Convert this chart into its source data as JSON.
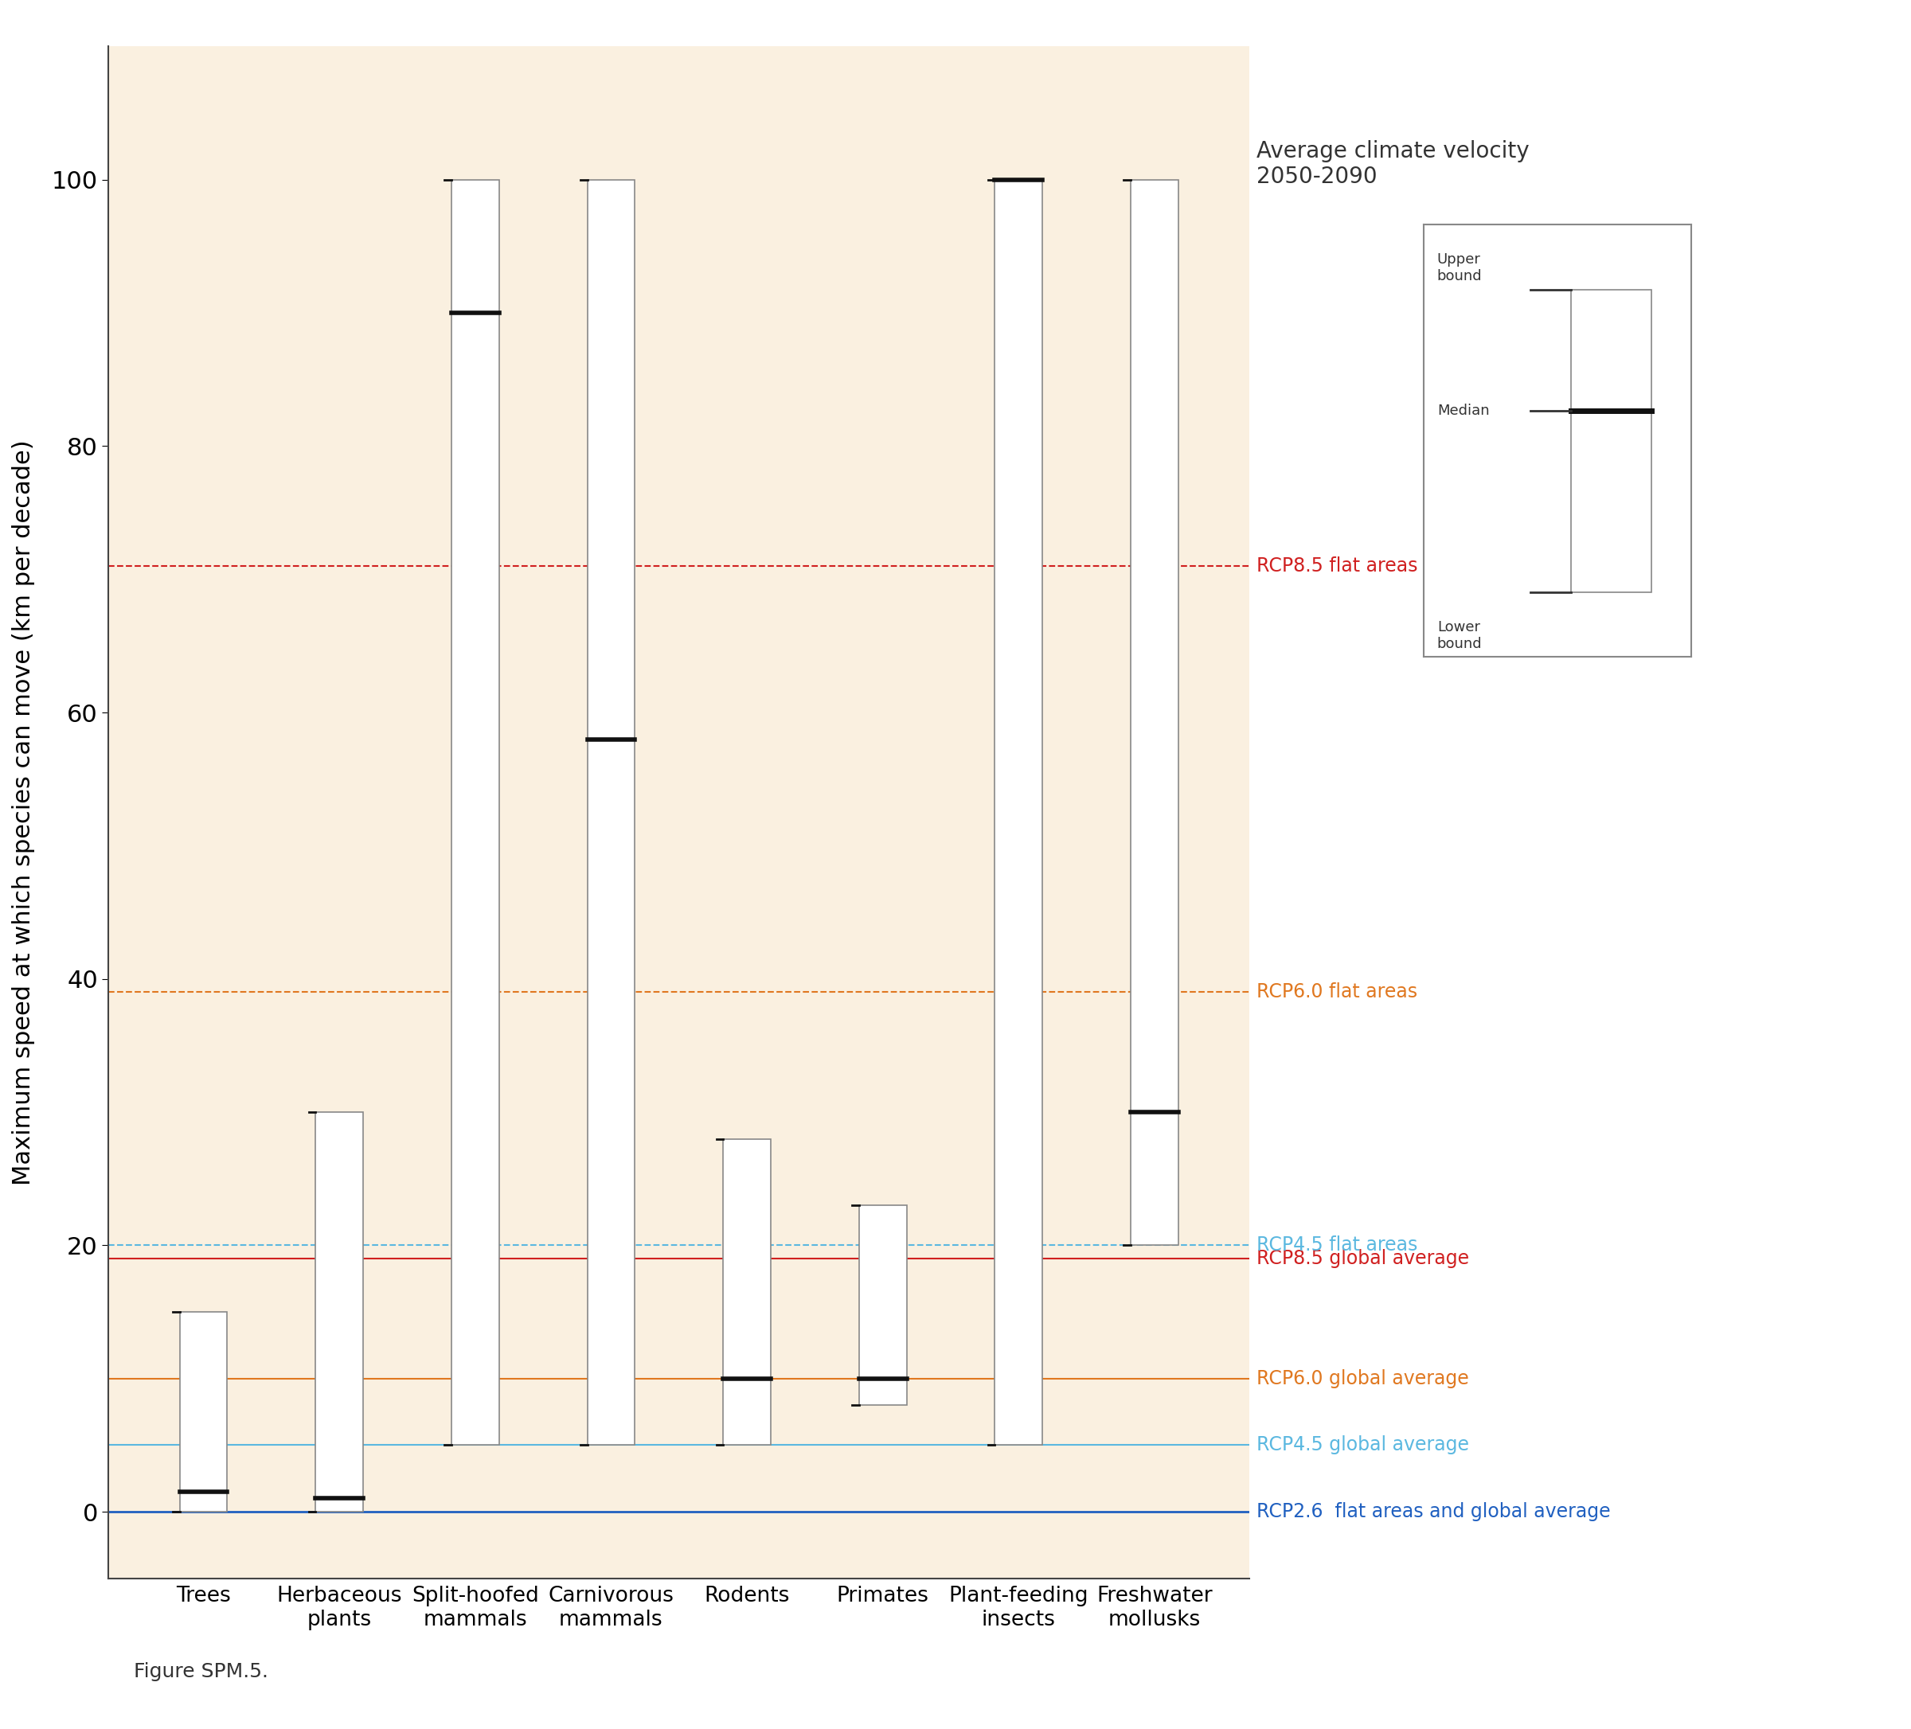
{
  "categories": [
    "Trees",
    "Herbaceous\nplants",
    "Split-hoofed\nmammals",
    "Carnivorous\nmammals",
    "Rodents",
    "Primates",
    "Plant-feeding\ninsects",
    "Freshwater\nmollusks"
  ],
  "boxes": [
    {
      "lower": 0,
      "median": 1.5,
      "upper": 15
    },
    {
      "lower": 0,
      "median": 1,
      "upper": 30
    },
    {
      "lower": 5,
      "median": 90,
      "upper": 100
    },
    {
      "lower": 5,
      "median": 58,
      "upper": 100
    },
    {
      "lower": 5,
      "median": 10,
      "upper": 28
    },
    {
      "lower": 8,
      "median": 10,
      "upper": 23
    },
    {
      "lower": 5,
      "median": 100,
      "upper": 100
    },
    {
      "lower": 20,
      "median": 30,
      "upper": 100
    }
  ],
  "hlines": [
    {
      "y": 0,
      "color": "#2060c0",
      "linestyle": "solid",
      "label": "RCP2.6  flat areas and global average",
      "lw": 2.0
    },
    {
      "y": 5,
      "color": "#5bb8e0",
      "linestyle": "solid",
      "label": "RCP4.5 global average",
      "lw": 1.5
    },
    {
      "y": 10,
      "color": "#e07820",
      "linestyle": "solid",
      "label": "RCP6.0 global average",
      "lw": 1.5
    },
    {
      "y": 19,
      "color": "#d02020",
      "linestyle": "solid",
      "label": "RCP8.5 global average",
      "lw": 1.5
    },
    {
      "y": 20,
      "color": "#5bb8e0",
      "linestyle": "dashed",
      "label": "RCP4.5 flat areas",
      "lw": 1.5
    },
    {
      "y": 39,
      "color": "#e07820",
      "linestyle": "dashed",
      "label": "RCP6.0 flat areas",
      "lw": 1.5
    },
    {
      "y": 71,
      "color": "#d02020",
      "linestyle": "dashed",
      "label": "RCP8.5 flat areas",
      "lw": 1.5
    }
  ],
  "ylim": [
    -5,
    110
  ],
  "yticks": [
    0,
    20,
    40,
    60,
    80,
    100
  ],
  "ylabel": "Maximum speed at which species can move (km per decade)",
  "bg_color": "#faf0e0",
  "box_color": "white",
  "box_edge": "#888888",
  "median_color": "#111111",
  "title_text": "Average climate velocity\n2050-2090",
  "figure_note": "Figure SPM.5.",
  "box_width": 0.35
}
